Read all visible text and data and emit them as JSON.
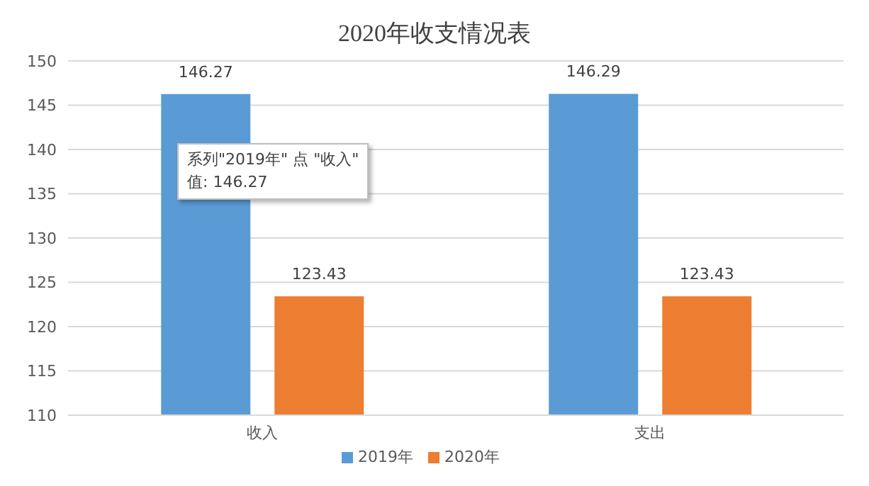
{
  "chart_data": {
    "type": "bar",
    "title": "2020年收支情况表",
    "categories": [
      "收入",
      "支出"
    ],
    "series": [
      {
        "name": "2019年",
        "color": "#5b9bd5",
        "values": [
          146.27,
          146.29
        ]
      },
      {
        "name": "2020年",
        "color": "#ed7d31",
        "values": [
          123.43,
          123.43
        ]
      }
    ],
    "ylim": [
      110,
      150
    ],
    "yticks": [
      110,
      115,
      120,
      125,
      130,
      135,
      140,
      145,
      150
    ],
    "grid": "y",
    "legend": "bottom",
    "data_labels": true,
    "annotations": [
      "系列\"2019年\" 点 \"收入\"\n值: 146.27"
    ]
  }
}
